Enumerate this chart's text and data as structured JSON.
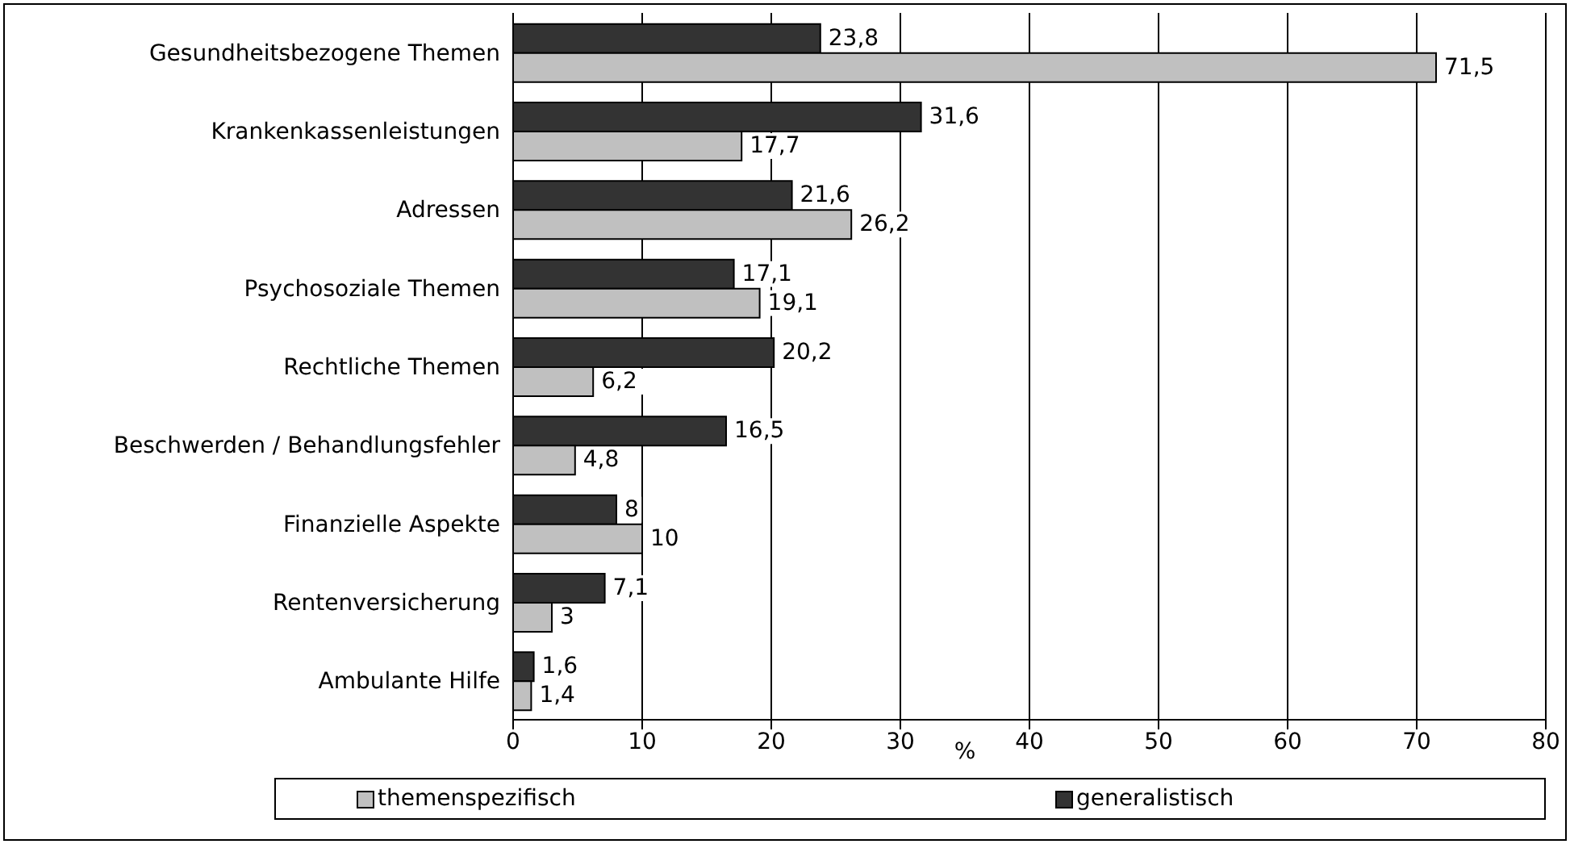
{
  "chart_data": {
    "type": "bar",
    "orientation": "horizontal",
    "xlabel": "%",
    "categories": [
      "Gesundheitsbezogene Themen",
      "Krankenkassenleistungen",
      "Adressen",
      "Psychosoziale Themen",
      "Rechtliche Themen",
      "Beschwerden / Behandlungsfehler",
      "Finanzielle Aspekte",
      "Rentenversicherung",
      "Ambulante Hilfe"
    ],
    "series": [
      {
        "name": "generalistisch",
        "color": "#333333",
        "values": [
          23.8,
          31.6,
          21.6,
          17.1,
          20.2,
          16.5,
          8,
          7.1,
          1.6
        ],
        "value_labels": [
          "23,8",
          "31,6",
          "21,6",
          "17,1",
          "20,2",
          "16,5",
          "8",
          "7,1",
          "1,6"
        ]
      },
      {
        "name": "themenspezifisch",
        "color": "#c0c0c0",
        "values": [
          71.5,
          17.7,
          26.2,
          19.1,
          6.2,
          4.8,
          10,
          3,
          1.4
        ],
        "value_labels": [
          "71,5",
          "17,7",
          "26,2",
          "19,1",
          "6,2",
          "4,8",
          "10",
          "3",
          "1,4"
        ]
      }
    ],
    "xlim": [
      0,
      80
    ],
    "xticks": [
      0,
      10,
      20,
      30,
      40,
      50,
      60,
      70,
      80
    ],
    "grid": "x",
    "legend": "bottom"
  }
}
